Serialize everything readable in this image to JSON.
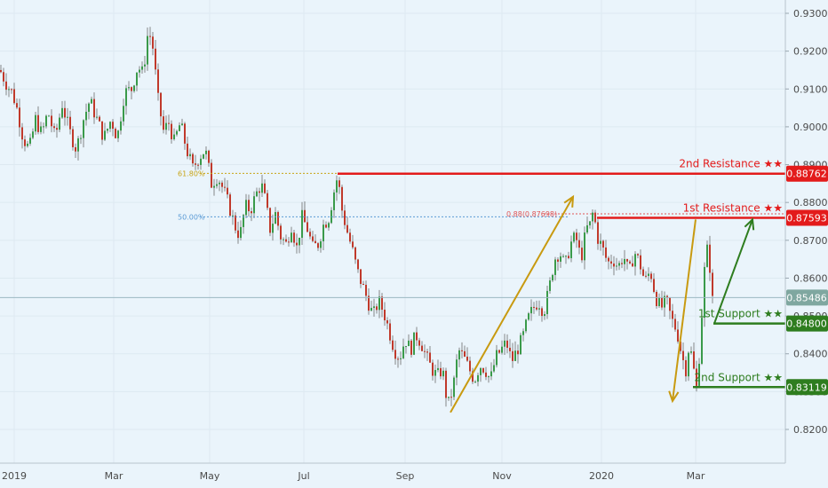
{
  "chart_data": {
    "type": "candlestick",
    "ylim": [
      0.8155,
      0.9345
    ],
    "y_ticks": [
      "0.82000",
      "0.83000",
      "0.84000",
      "0.85000",
      "0.86000",
      "0.87000",
      "0.88000",
      "0.89000",
      "0.90000",
      "0.91000",
      "0.92000",
      "0.93000"
    ],
    "x_ticks": [
      "2019",
      "Mar",
      "May",
      "Jul",
      "Sep",
      "Nov",
      "2020",
      "Mar"
    ],
    "current_price": "0.85486",
    "fib_levels": [
      {
        "label": "61.80%",
        "value": 0.8877,
        "color": "#c8a415"
      },
      {
        "label": "50.00%",
        "value": 0.8762,
        "color": "#5b9bd5"
      },
      {
        "label": "0.88(0.87698)",
        "value": 0.877,
        "color": "#e05555"
      }
    ],
    "levels": [
      {
        "name": "2nd Resistance ★★",
        "price": "0.88762",
        "value": 0.88762,
        "color": "#e31b1b"
      },
      {
        "name": "1st Resistance ★★",
        "price": "0.87593",
        "value": 0.87593,
        "color": "#e31b1b"
      },
      {
        "name": "1st Support ★★",
        "price": "0.84800",
        "value": 0.848,
        "color": "#2e7d1f"
      },
      {
        "name": "2nd Support ★★",
        "price": "0.83119",
        "value": 0.83119,
        "color": "#2e7d1f"
      }
    ],
    "series_points": [
      [
        0,
        0.915
      ],
      [
        8,
        0.911
      ],
      [
        14,
        0.909
      ],
      [
        20,
        0.904
      ],
      [
        26,
        0.897
      ],
      [
        33,
        0.894
      ],
      [
        40,
        0.902
      ],
      [
        47,
        0.898
      ],
      [
        54,
        0.904
      ],
      [
        62,
        0.897
      ],
      [
        70,
        0.906
      ],
      [
        78,
        0.899
      ],
      [
        86,
        0.894
      ],
      [
        94,
        0.902
      ],
      [
        101,
        0.907
      ],
      [
        109,
        0.902
      ],
      [
        117,
        0.897
      ],
      [
        125,
        0.902
      ],
      [
        132,
        0.897
      ],
      [
        140,
        0.909
      ],
      [
        148,
        0.91
      ],
      [
        155,
        0.916
      ],
      [
        161,
        0.914
      ],
      [
        167,
        0.926
      ],
      [
        172,
        0.921
      ],
      [
        178,
        0.907
      ],
      [
        184,
        0.899
      ],
      [
        190,
        0.901
      ],
      [
        196,
        0.896
      ],
      [
        203,
        0.901
      ],
      [
        210,
        0.894
      ],
      [
        217,
        0.889
      ],
      [
        224,
        0.892
      ],
      [
        231,
        0.894
      ],
      [
        238,
        0.885
      ],
      [
        245,
        0.887
      ],
      [
        252,
        0.883
      ],
      [
        258,
        0.879
      ],
      [
        264,
        0.874
      ],
      [
        270,
        0.871
      ],
      [
        276,
        0.879
      ],
      [
        282,
        0.878
      ],
      [
        288,
        0.882
      ],
      [
        294,
        0.885
      ],
      [
        298,
        0.881
      ],
      [
        304,
        0.873
      ],
      [
        310,
        0.877
      ],
      [
        316,
        0.871
      ],
      [
        322,
        0.869
      ],
      [
        328,
        0.874
      ],
      [
        334,
        0.868
      ],
      [
        340,
        0.876
      ],
      [
        346,
        0.873
      ],
      [
        352,
        0.868
      ],
      [
        358,
        0.869
      ],
      [
        364,
        0.874
      ],
      [
        370,
        0.876
      ],
      [
        376,
        0.883
      ],
      [
        380,
        0.887
      ],
      [
        385,
        0.878
      ],
      [
        390,
        0.873
      ],
      [
        396,
        0.868
      ],
      [
        402,
        0.862
      ],
      [
        408,
        0.858
      ],
      [
        414,
        0.854
      ],
      [
        420,
        0.85
      ],
      [
        426,
        0.854
      ],
      [
        432,
        0.851
      ],
      [
        438,
        0.846
      ],
      [
        444,
        0.841
      ],
      [
        450,
        0.839
      ],
      [
        456,
        0.844
      ],
      [
        462,
        0.841
      ],
      [
        468,
        0.845
      ],
      [
        474,
        0.843
      ],
      [
        480,
        0.839
      ],
      [
        486,
        0.836
      ],
      [
        492,
        0.834
      ],
      [
        498,
        0.836
      ],
      [
        504,
        0.826
      ],
      [
        510,
        0.831
      ],
      [
        516,
        0.841
      ],
      [
        522,
        0.839
      ],
      [
        528,
        0.836
      ],
      [
        534,
        0.833
      ],
      [
        540,
        0.837
      ],
      [
        546,
        0.836
      ],
      [
        552,
        0.833
      ],
      [
        558,
        0.839
      ],
      [
        564,
        0.841
      ],
      [
        570,
        0.843
      ],
      [
        576,
        0.838
      ],
      [
        582,
        0.841
      ],
      [
        588,
        0.844
      ],
      [
        594,
        0.849
      ],
      [
        600,
        0.852
      ],
      [
        606,
        0.854
      ],
      [
        612,
        0.851
      ],
      [
        618,
        0.857
      ],
      [
        624,
        0.865
      ],
      [
        630,
        0.867
      ],
      [
        636,
        0.863
      ],
      [
        642,
        0.869
      ],
      [
        648,
        0.871
      ],
      [
        654,
        0.865
      ],
      [
        660,
        0.873
      ],
      [
        664,
        0.874
      ],
      [
        668,
        0.878
      ],
      [
        672,
        0.871
      ],
      [
        678,
        0.868
      ],
      [
        684,
        0.864
      ],
      [
        690,
        0.865
      ],
      [
        696,
        0.863
      ],
      [
        702,
        0.866
      ],
      [
        708,
        0.861
      ],
      [
        714,
        0.867
      ],
      [
        720,
        0.864
      ],
      [
        726,
        0.859
      ],
      [
        732,
        0.862
      ],
      [
        738,
        0.855
      ],
      [
        744,
        0.852
      ],
      [
        750,
        0.854
      ],
      [
        756,
        0.849
      ],
      [
        762,
        0.846
      ],
      [
        768,
        0.839
      ],
      [
        772,
        0.836
      ],
      [
        776,
        0.843
      ],
      [
        780,
        0.837
      ],
      [
        784,
        0.831
      ],
      [
        788,
        0.842
      ],
      [
        792,
        0.859
      ],
      [
        795,
        0.868
      ],
      [
        798,
        0.866
      ],
      [
        801,
        0.857
      ],
      [
        804,
        0.848
      ]
    ],
    "arrows": [
      {
        "color": "#c89a10",
        "from": [
          0.8245,
          "Sep-mid"
        ],
        "to": [
          0.8815,
          "Dec"
        ]
      },
      {
        "color": "#c89a10",
        "from": [
          0.8755,
          "Feb-end"
        ],
        "to": [
          0.8275,
          "Feb"
        ]
      },
      {
        "color": "#2e7d1f",
        "from": [
          0.848,
          "Mar"
        ],
        "to": [
          0.8755,
          "Mar-mid"
        ]
      }
    ]
  }
}
